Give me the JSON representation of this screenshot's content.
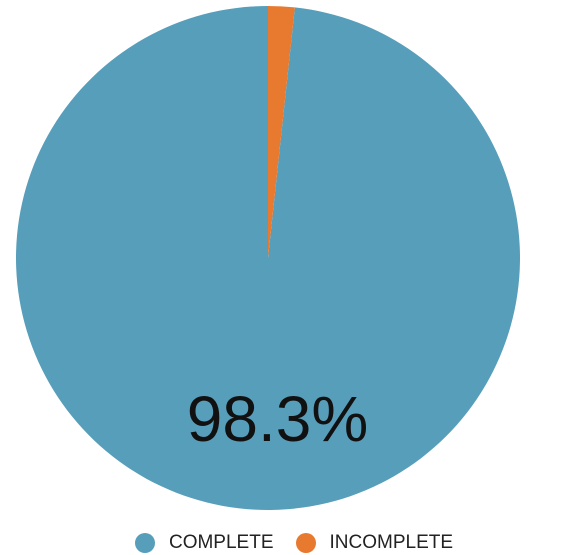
{
  "chart_data": {
    "type": "pie",
    "series": [
      {
        "name": "COMPLETE",
        "value": 98.3,
        "color": "#579EBB"
      },
      {
        "name": "INCOMPLETE",
        "value": 1.7,
        "color": "#E87A30"
      }
    ],
    "center_label": "98.3%",
    "legend_position": "bottom"
  }
}
